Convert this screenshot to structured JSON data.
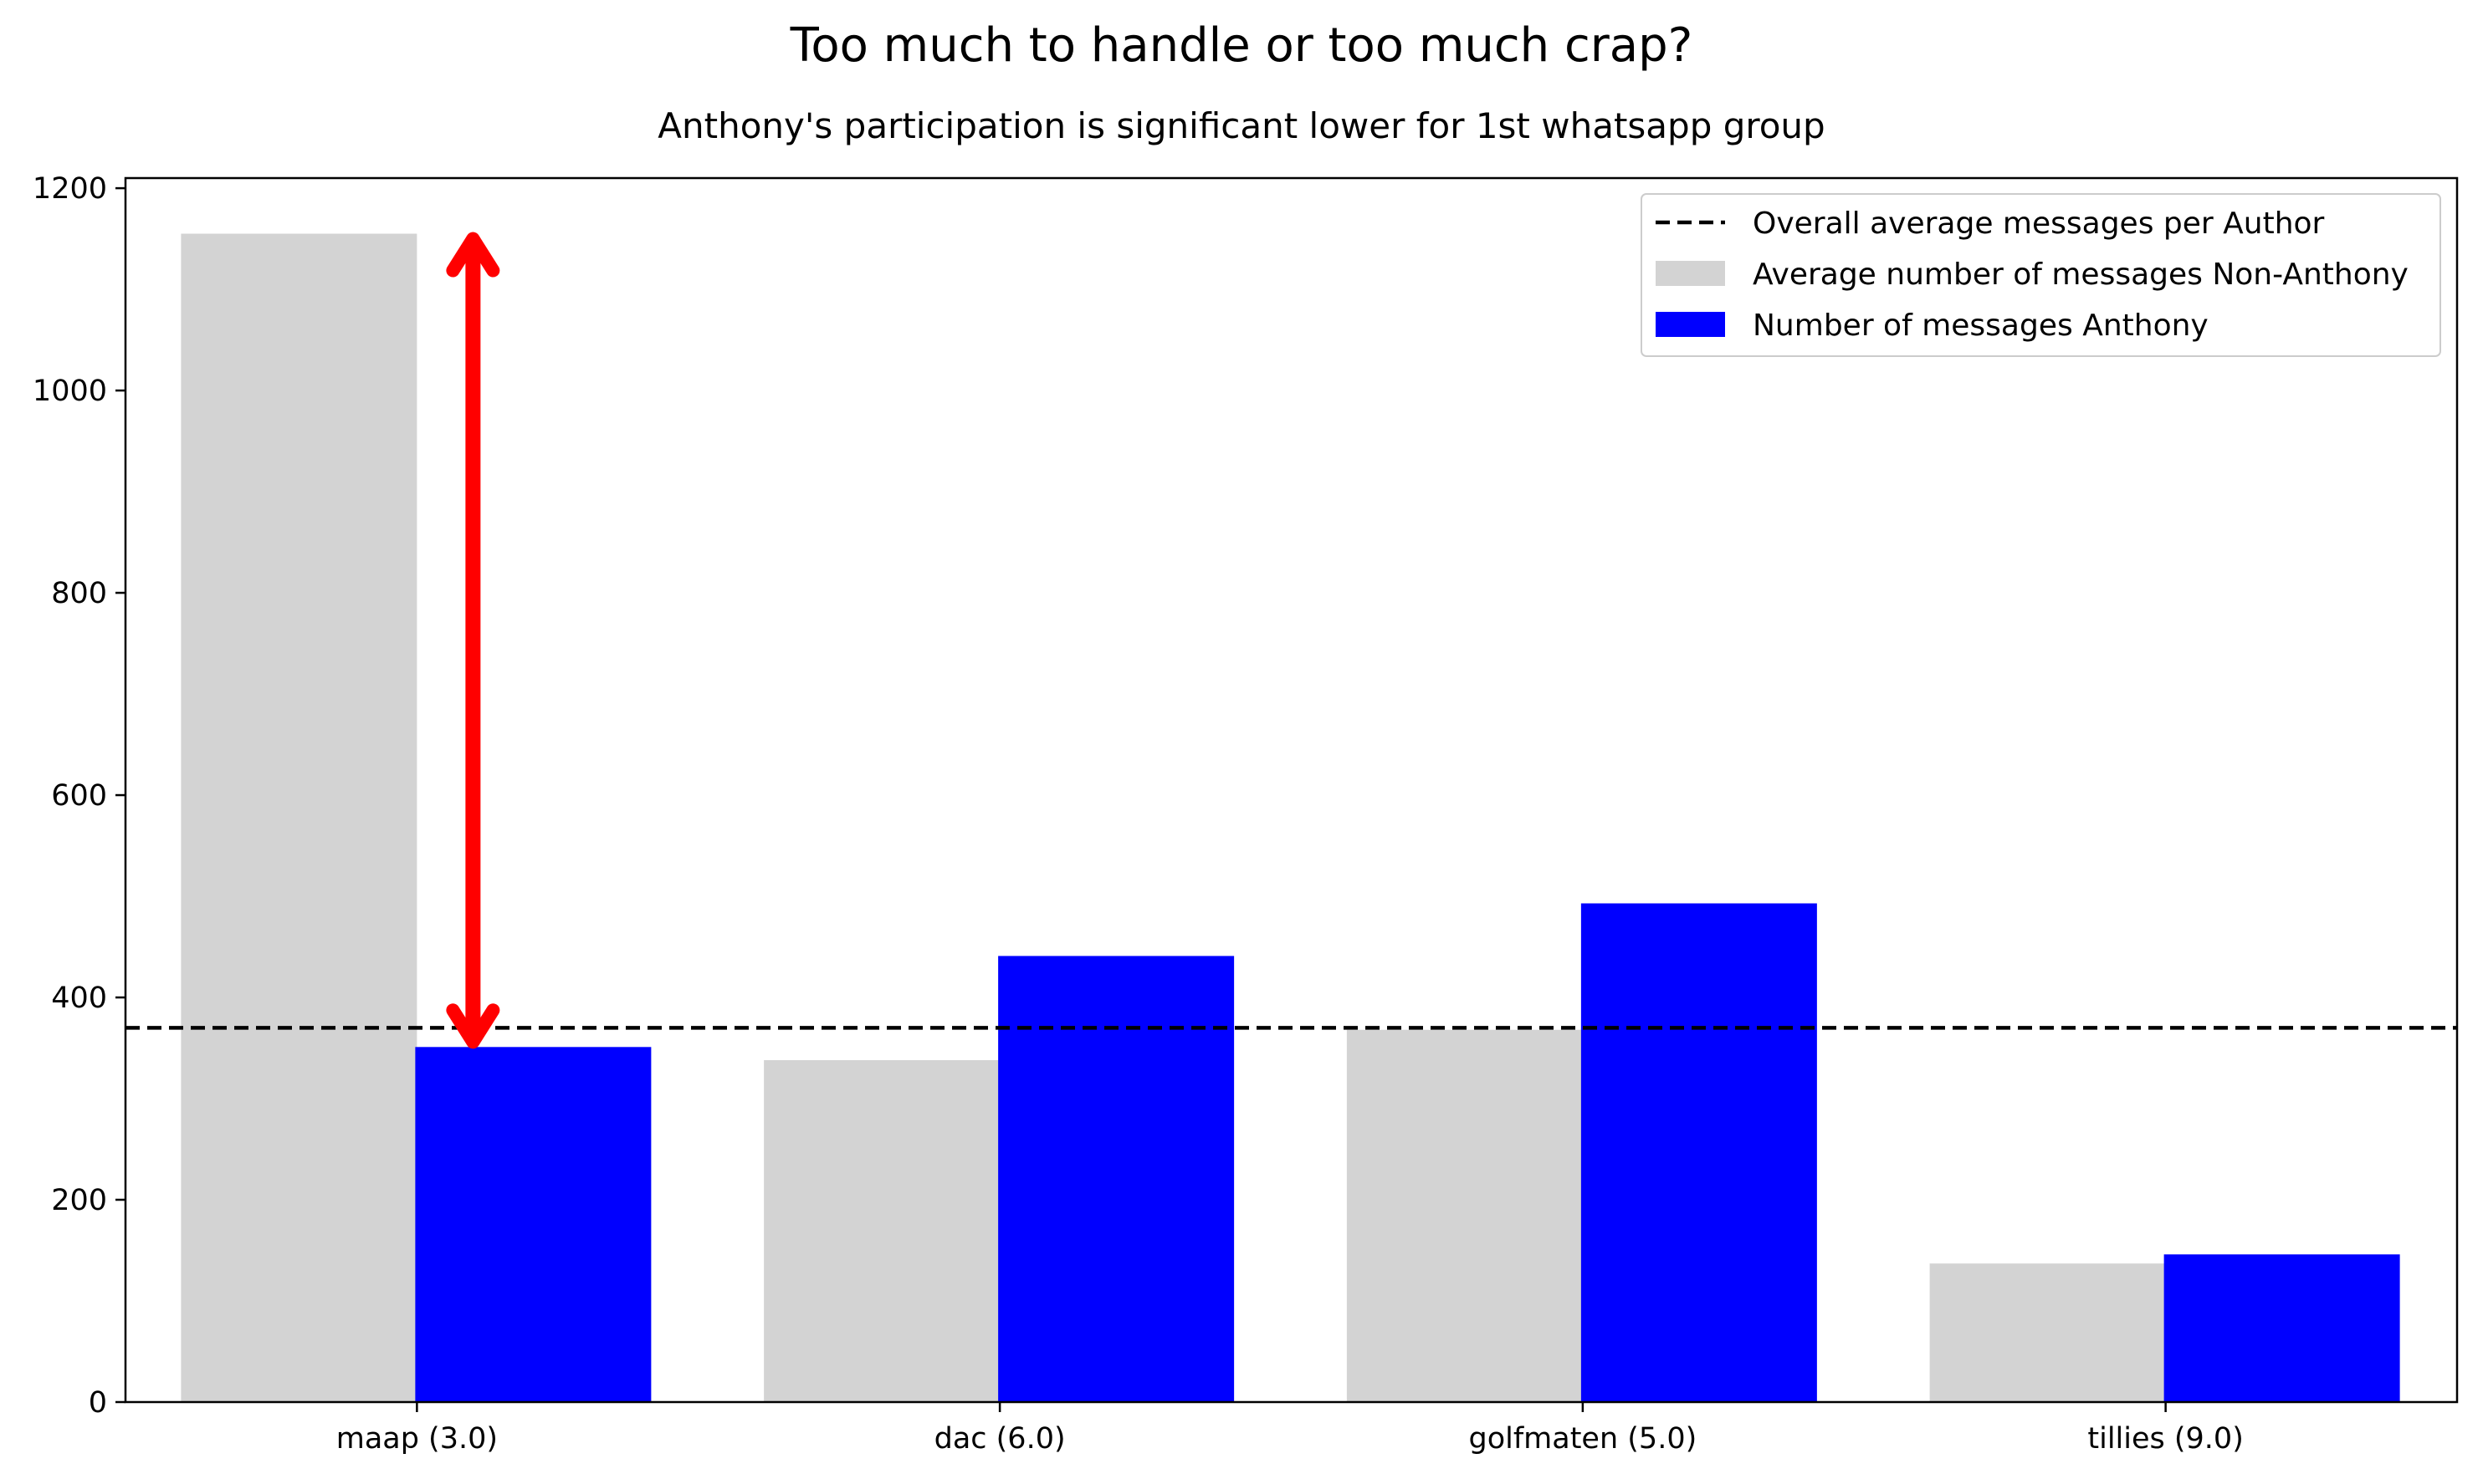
{
  "chart_data": {
    "type": "bar",
    "title": "Too much to handle or too much crap?",
    "subtitle": "Anthony's participation is significant lower for 1st whatsapp group",
    "categories": [
      "maap (3.0)",
      "dac (6.0)",
      "golfmaten (5.0)",
      "tillies (9.0)"
    ],
    "series": [
      {
        "name": "Average number of messages Non-Anthony",
        "values": [
          1155,
          338,
          368,
          137
        ],
        "color": "#d3d3d3"
      },
      {
        "name": "Number of messages Anthony",
        "values": [
          351,
          441,
          493,
          146
        ],
        "color": "#0000ff"
      }
    ],
    "reference_line": {
      "name": "Overall average messages per Author",
      "value": 370,
      "style": "dashed",
      "color": "#000000"
    },
    "annotation": {
      "type": "double-arrow",
      "category": "maap (3.0)",
      "from": 1155,
      "to": 351,
      "color": "#ff0000"
    },
    "ylim": [
      0,
      1210
    ],
    "yticks": [
      0,
      200,
      400,
      600,
      800,
      1000,
      1200
    ],
    "xlabel": "",
    "ylabel": "",
    "legend_position": "top-right",
    "grid": false
  }
}
